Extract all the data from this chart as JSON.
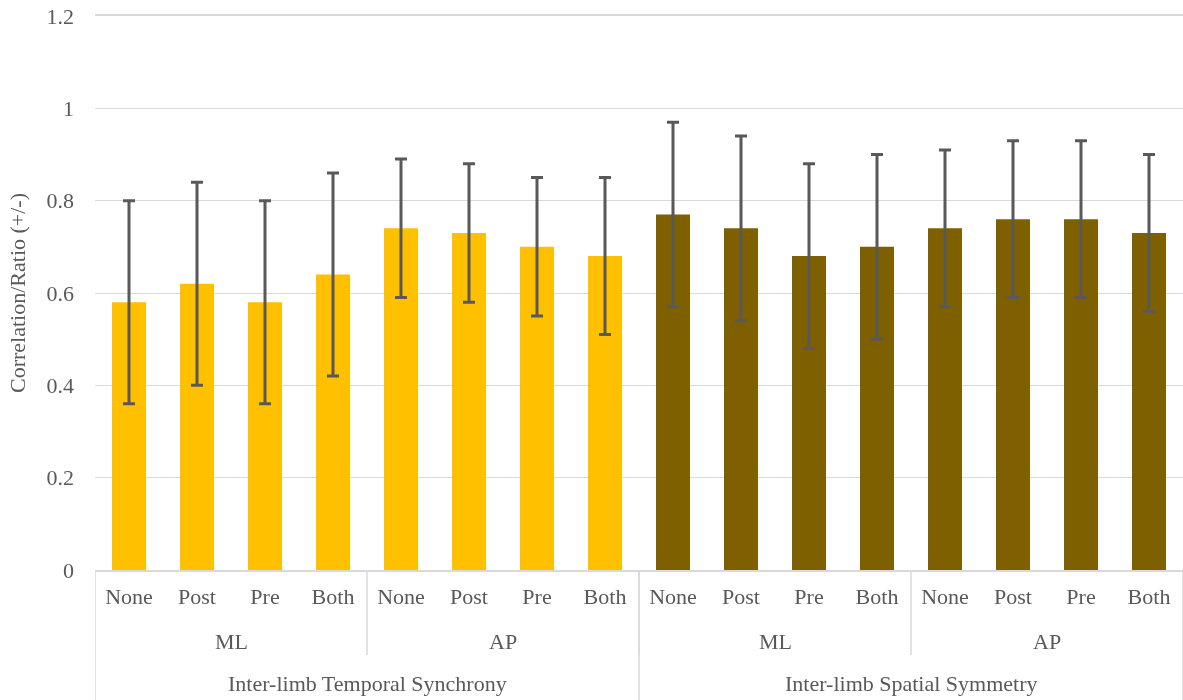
{
  "chart_data": {
    "type": "bar",
    "ylabel": "Correlation/Ratio (+/-)",
    "categories": [
      "None",
      "Post",
      "Pre",
      "Both",
      "None",
      "Post",
      "Pre",
      "Both",
      "None",
      "Post",
      "Pre",
      "Both",
      "None",
      "Post",
      "Pre",
      "Both"
    ],
    "values": [
      0.58,
      0.62,
      0.58,
      0.64,
      0.74,
      0.73,
      0.7,
      0.68,
      0.77,
      0.74,
      0.68,
      0.7,
      0.74,
      0.76,
      0.76,
      0.73
    ],
    "errors": [
      0.22,
      0.22,
      0.22,
      0.22,
      0.15,
      0.15,
      0.15,
      0.17,
      0.2,
      0.2,
      0.2,
      0.2,
      0.17,
      0.17,
      0.17,
      0.17
    ],
    "colors": [
      "#ffc000",
      "#ffc000",
      "#ffc000",
      "#ffc000",
      "#ffc000",
      "#ffc000",
      "#ffc000",
      "#ffc000",
      "#7f6000",
      "#7f6000",
      "#7f6000",
      "#7f6000",
      "#7f6000",
      "#7f6000",
      "#7f6000",
      "#7f6000"
    ],
    "annotations": [
      "ML",
      "AP",
      "ML",
      "AP",
      "Inter-limb Temporal Synchrony",
      "Inter-limb Spatial Symmetry"
    ],
    "ylim": [
      0,
      1.2
    ],
    "yticks": [
      0,
      0.2,
      0.4,
      0.6,
      0.8,
      1,
      1.2
    ],
    "grid": "y"
  }
}
